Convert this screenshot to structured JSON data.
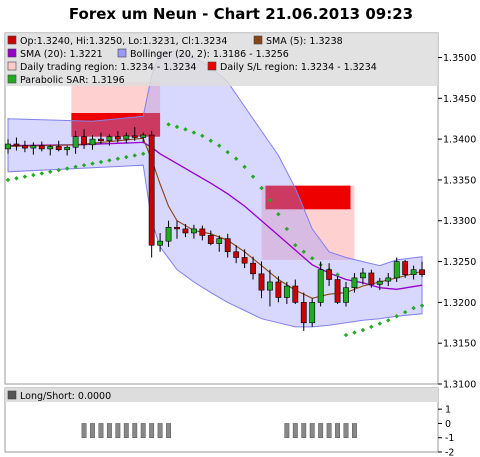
{
  "title": "Forex um Neun - Chart 21.06.2013 09:23",
  "chart_data": {
    "type": "candlestick",
    "ylim": [
      1.31,
      1.353
    ],
    "y_ticks": [
      "1.3100",
      "1.3150",
      "1.3200",
      "1.3250",
      "1.3300",
      "1.3350",
      "1.3400",
      "1.3450",
      "1.3500"
    ],
    "grid": false,
    "legend_position": "top-left, inside plot",
    "legend": [
      {
        "label": "Op:1.3240, Hi:1.3250, Lo:1.3231, Cl:1.3234",
        "color": "#cc0000",
        "kind": "square"
      },
      {
        "label": "SMA (5): 1.3238",
        "color": "#8b4513",
        "kind": "square"
      },
      {
        "label": "SMA (20): 1.3221",
        "color": "#9900cc",
        "kind": "square"
      },
      {
        "label": "Bollinger (20, 2): 1.3186 - 1.3256",
        "color": "#9999ff",
        "kind": "square"
      },
      {
        "label": "Daily trading region: 1.3234 - 1.3234",
        "color": "#ffcccc",
        "kind": "square"
      },
      {
        "label": "Daily S/L region: 1.3234 - 1.3234",
        "color": "#ee0000",
        "kind": "square"
      },
      {
        "label": "Parabolic SAR: 1.3196",
        "color": "#22aa22",
        "kind": "square"
      }
    ],
    "candles": [
      [
        1.3388,
        1.34,
        1.3382,
        1.3394
      ],
      [
        1.3394,
        1.3402,
        1.3386,
        1.3392
      ],
      [
        1.3392,
        1.3398,
        1.3384,
        1.3389
      ],
      [
        1.3389,
        1.3396,
        1.3381,
        1.3392
      ],
      [
        1.3392,
        1.3397,
        1.3385,
        1.3388
      ],
      [
        1.3388,
        1.3393,
        1.338,
        1.3391
      ],
      [
        1.3391,
        1.3398,
        1.3385,
        1.3387
      ],
      [
        1.3387,
        1.3392,
        1.338,
        1.339
      ],
      [
        1.339,
        1.341,
        1.3382,
        1.3403
      ],
      [
        1.3403,
        1.3412,
        1.3388,
        1.3393
      ],
      [
        1.3393,
        1.3405,
        1.3387,
        1.34
      ],
      [
        1.34,
        1.3408,
        1.3394,
        1.3398
      ],
      [
        1.3398,
        1.3406,
        1.3392,
        1.3403
      ],
      [
        1.3403,
        1.341,
        1.3396,
        1.34
      ],
      [
        1.34,
        1.3408,
        1.3395,
        1.3404
      ],
      [
        1.3404,
        1.3415,
        1.3398,
        1.3402
      ],
      [
        1.3402,
        1.3408,
        1.3396,
        1.3405
      ],
      [
        1.3405,
        1.341,
        1.3255,
        1.327
      ],
      [
        1.327,
        1.3285,
        1.3262,
        1.3275
      ],
      [
        1.3275,
        1.33,
        1.3268,
        1.3292
      ],
      [
        1.3292,
        1.33,
        1.3278,
        1.329
      ],
      [
        1.329,
        1.3296,
        1.328,
        1.3285
      ],
      [
        1.3285,
        1.3295,
        1.3278,
        1.329
      ],
      [
        1.329,
        1.3294,
        1.3276,
        1.3282
      ],
      [
        1.3282,
        1.3288,
        1.327,
        1.3272
      ],
      [
        1.3272,
        1.3282,
        1.3262,
        1.3278
      ],
      [
        1.3278,
        1.3284,
        1.3255,
        1.3262
      ],
      [
        1.3262,
        1.327,
        1.3248,
        1.3255
      ],
      [
        1.3255,
        1.3265,
        1.3242,
        1.3248
      ],
      [
        1.3248,
        1.3256,
        1.3228,
        1.3235
      ],
      [
        1.3235,
        1.325,
        1.3205,
        1.3215
      ],
      [
        1.3215,
        1.324,
        1.3195,
        1.3225
      ],
      [
        1.3225,
        1.3232,
        1.32,
        1.3206
      ],
      [
        1.3206,
        1.3225,
        1.3198,
        1.322
      ],
      [
        1.322,
        1.3228,
        1.3198,
        1.32
      ],
      [
        1.32,
        1.3212,
        1.3165,
        1.3175
      ],
      [
        1.3175,
        1.3205,
        1.317,
        1.32
      ],
      [
        1.32,
        1.325,
        1.3195,
        1.324
      ],
      [
        1.324,
        1.3248,
        1.322,
        1.3228
      ],
      [
        1.3228,
        1.3232,
        1.3198,
        1.32
      ],
      [
        1.32,
        1.3225,
        1.3195,
        1.3218
      ],
      [
        1.3218,
        1.3236,
        1.3212,
        1.323
      ],
      [
        1.323,
        1.3242,
        1.3222,
        1.3236
      ],
      [
        1.3236,
        1.324,
        1.3218,
        1.3222
      ],
      [
        1.3222,
        1.323,
        1.3215,
        1.3226
      ],
      [
        1.3226,
        1.3236,
        1.322,
        1.323
      ],
      [
        1.323,
        1.3255,
        1.3225,
        1.325
      ],
      [
        1.325,
        1.3252,
        1.323,
        1.3234
      ],
      [
        1.3234,
        1.3245,
        1.3228,
        1.324
      ],
      [
        1.324,
        1.325,
        1.3231,
        1.3234
      ]
    ],
    "sma5": [
      [
        0,
        1.3391
      ],
      [
        8,
        1.3393
      ],
      [
        16,
        1.3401
      ],
      [
        17,
        1.3375
      ],
      [
        18,
        1.3345
      ],
      [
        19,
        1.3318
      ],
      [
        20,
        1.33
      ],
      [
        22,
        1.3288
      ],
      [
        24,
        1.3284
      ],
      [
        26,
        1.3276
      ],
      [
        28,
        1.3262
      ],
      [
        30,
        1.3245
      ],
      [
        32,
        1.3228
      ],
      [
        34,
        1.3215
      ],
      [
        36,
        1.3205
      ],
      [
        38,
        1.321
      ],
      [
        40,
        1.3212
      ],
      [
        42,
        1.322
      ],
      [
        44,
        1.3225
      ],
      [
        46,
        1.323
      ],
      [
        49,
        1.3238
      ]
    ],
    "sma20": [
      [
        0,
        1.3392
      ],
      [
        8,
        1.3393
      ],
      [
        16,
        1.3396
      ],
      [
        17,
        1.339
      ],
      [
        18,
        1.3382
      ],
      [
        20,
        1.337
      ],
      [
        22,
        1.3358
      ],
      [
        24,
        1.3346
      ],
      [
        26,
        1.3333
      ],
      [
        28,
        1.3318
      ],
      [
        30,
        1.33
      ],
      [
        32,
        1.3282
      ],
      [
        34,
        1.3264
      ],
      [
        36,
        1.3246
      ],
      [
        38,
        1.3236
      ],
      [
        40,
        1.3228
      ],
      [
        42,
        1.3224
      ],
      [
        44,
        1.3218
      ],
      [
        46,
        1.3216
      ],
      [
        49,
        1.3221
      ]
    ],
    "bollinger_upper": [
      [
        0,
        1.3425
      ],
      [
        10,
        1.3422
      ],
      [
        16,
        1.3428
      ],
      [
        17,
        1.3478
      ],
      [
        18,
        1.3505
      ],
      [
        20,
        1.3508
      ],
      [
        22,
        1.35
      ],
      [
        24,
        1.3488
      ],
      [
        26,
        1.347
      ],
      [
        28,
        1.344
      ],
      [
        30,
        1.341
      ],
      [
        32,
        1.338
      ],
      [
        34,
        1.334
      ],
      [
        36,
        1.329
      ],
      [
        38,
        1.3262
      ],
      [
        40,
        1.3255
      ],
      [
        42,
        1.325
      ],
      [
        44,
        1.3245
      ],
      [
        46,
        1.3252
      ],
      [
        49,
        1.3256
      ]
    ],
    "bollinger_lower": [
      [
        0,
        1.336
      ],
      [
        10,
        1.3365
      ],
      [
        16,
        1.3368
      ],
      [
        17,
        1.33
      ],
      [
        18,
        1.3268
      ],
      [
        20,
        1.324
      ],
      [
        22,
        1.3225
      ],
      [
        24,
        1.3212
      ],
      [
        26,
        1.32
      ],
      [
        28,
        1.319
      ],
      [
        30,
        1.318
      ],
      [
        32,
        1.3175
      ],
      [
        34,
        1.317
      ],
      [
        36,
        1.317
      ],
      [
        38,
        1.3172
      ],
      [
        40,
        1.3175
      ],
      [
        42,
        1.3178
      ],
      [
        44,
        1.318
      ],
      [
        46,
        1.3183
      ],
      [
        49,
        1.3186
      ]
    ],
    "trading_regions": [
      {
        "from": 7.5,
        "to": 18,
        "low": 1.3403,
        "high": 1.347
      },
      {
        "from": 30,
        "to": 41,
        "low": 1.3252,
        "high": 1.3343
      }
    ],
    "sl_regions": [
      {
        "from": 7.5,
        "to": 18,
        "low": 1.3403,
        "high": 1.3432
      },
      {
        "from": 30,
        "to": 41,
        "low": 1.3314,
        "high": 1.3343
      }
    ],
    "psar": [
      [
        0,
        1.335
      ],
      [
        1,
        1.3352
      ],
      [
        2,
        1.3354
      ],
      [
        3,
        1.3356
      ],
      [
        4,
        1.3358
      ],
      [
        5,
        1.336
      ],
      [
        6,
        1.3362
      ],
      [
        7,
        1.3364
      ],
      [
        8,
        1.3366
      ],
      [
        9,
        1.3368
      ],
      [
        10,
        1.337
      ],
      [
        11,
        1.3372
      ],
      [
        12,
        1.3374
      ],
      [
        13,
        1.3376
      ],
      [
        14,
        1.3378
      ],
      [
        15,
        1.338
      ],
      [
        16,
        1.3382
      ],
      [
        19,
        1.3418
      ],
      [
        20,
        1.3415
      ],
      [
        21,
        1.3412
      ],
      [
        22,
        1.3408
      ],
      [
        23,
        1.3404
      ],
      [
        24,
        1.3398
      ],
      [
        25,
        1.3392
      ],
      [
        26,
        1.3384
      ],
      [
        27,
        1.3376
      ],
      [
        28,
        1.3366
      ],
      [
        29,
        1.3354
      ],
      [
        30,
        1.334
      ],
      [
        31,
        1.3325
      ],
      [
        32,
        1.3308
      ],
      [
        33,
        1.329
      ],
      [
        34,
        1.327
      ],
      [
        35,
        1.3262
      ],
      [
        36,
        1.3254
      ],
      [
        37,
        1.3246
      ],
      [
        38,
        1.324
      ],
      [
        39,
        1.3234
      ],
      [
        40,
        1.316
      ],
      [
        41,
        1.3163
      ],
      [
        42,
        1.3166
      ],
      [
        43,
        1.317
      ],
      [
        44,
        1.3174
      ],
      [
        45,
        1.3178
      ],
      [
        46,
        1.3183
      ],
      [
        47,
        1.3188
      ],
      [
        48,
        1.3193
      ],
      [
        49,
        1.3196
      ]
    ],
    "subchart": {
      "label": "Long/Short: 0.0000",
      "ylim": [
        -2,
        1.5
      ],
      "y_ticks": [
        "1",
        "0",
        "-1",
        "-2"
      ],
      "bars": [
        {
          "from": 9,
          "to": 19,
          "value": -1
        },
        {
          "from": 33,
          "to": 41,
          "value": -1
        }
      ]
    }
  }
}
